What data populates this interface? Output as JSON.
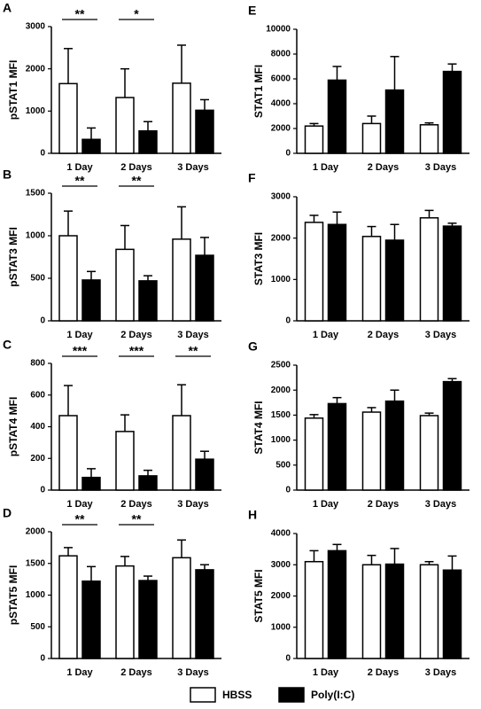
{
  "legend": [
    {
      "name": "HBSS",
      "color": "#ffffff"
    },
    {
      "name": "Poly(I:C)",
      "color": "#000000"
    }
  ],
  "chart_data": [
    {
      "type": "bar",
      "panel": "A",
      "ylabel": "pSTAT1 MFI",
      "categories": [
        "1 Day",
        "2 Days",
        "3 Days"
      ],
      "series": [
        {
          "values": [
            1650,
            1320,
            1660
          ],
          "errors": [
            830,
            680,
            900
          ]
        },
        {
          "values": [
            330,
            530,
            1020
          ],
          "errors": [
            270,
            220,
            250
          ]
        }
      ],
      "significance": [
        "**",
        "*",
        null
      ],
      "ylim": [
        0,
        3000
      ],
      "yticks": [
        0,
        1000,
        2000,
        3000
      ]
    },
    {
      "type": "bar",
      "panel": "B",
      "ylabel": "pSTAT3 MFI",
      "categories": [
        "1 Day",
        "2 Days",
        "3 Days"
      ],
      "series": [
        {
          "values": [
            1000,
            840,
            960
          ],
          "errors": [
            290,
            280,
            380
          ]
        },
        {
          "values": [
            480,
            470,
            770
          ],
          "errors": [
            100,
            60,
            210
          ]
        }
      ],
      "significance": [
        "**",
        "**",
        null
      ],
      "ylim": [
        0,
        1500
      ],
      "yticks": [
        0,
        500,
        1000,
        1500
      ]
    },
    {
      "type": "bar",
      "panel": "C",
      "ylabel": "pSTAT4 MFI",
      "categories": [
        "1 Day",
        "2 Days",
        "3 Days"
      ],
      "series": [
        {
          "values": [
            470,
            370,
            470
          ],
          "errors": [
            190,
            105,
            195
          ]
        },
        {
          "values": [
            80,
            90,
            195
          ],
          "errors": [
            55,
            35,
            50
          ]
        }
      ],
      "significance": [
        "***",
        "***",
        "**"
      ],
      "ylim": [
        0,
        800
      ],
      "yticks": [
        0,
        200,
        400,
        600,
        800
      ]
    },
    {
      "type": "bar",
      "panel": "D",
      "ylabel": "pSTAT5 MFI",
      "categories": [
        "1 Day",
        "2 Days",
        "3 Days"
      ],
      "series": [
        {
          "values": [
            1620,
            1460,
            1590
          ],
          "errors": [
            130,
            150,
            280
          ]
        },
        {
          "values": [
            1220,
            1230,
            1400
          ],
          "errors": [
            230,
            70,
            80
          ]
        }
      ],
      "significance": [
        "**",
        "**",
        null
      ],
      "ylim": [
        0,
        2000
      ],
      "yticks": [
        0,
        500,
        1000,
        1500,
        2000
      ]
    },
    {
      "type": "bar",
      "panel": "E",
      "ylabel": "STAT1 MFI",
      "categories": [
        "1 Day",
        "2 Days",
        "3 Days"
      ],
      "series": [
        {
          "values": [
            2200,
            2400,
            2300
          ],
          "errors": [
            200,
            600,
            150
          ]
        },
        {
          "values": [
            5900,
            5100,
            6600
          ],
          "errors": [
            1100,
            2700,
            600
          ]
        }
      ],
      "ylim": [
        0,
        10000
      ],
      "yticks": [
        0,
        2000,
        4000,
        6000,
        8000,
        10000
      ]
    },
    {
      "type": "bar",
      "panel": "F",
      "ylabel": "STAT3 MFI",
      "categories": [
        "1 Day",
        "2 Days",
        "3 Days"
      ],
      "series": [
        {
          "values": [
            2380,
            2040,
            2490
          ],
          "errors": [
            170,
            240,
            180
          ]
        },
        {
          "values": [
            2330,
            1950,
            2290
          ],
          "errors": [
            300,
            380,
            70
          ]
        }
      ],
      "ylim": [
        0,
        3000
      ],
      "yticks": [
        0,
        1000,
        2000,
        3000
      ]
    },
    {
      "type": "bar",
      "panel": "G",
      "ylabel": "STAT4 MFI",
      "categories": [
        "1 Day",
        "2 Days",
        "3 Days"
      ],
      "series": [
        {
          "values": [
            1440,
            1560,
            1490
          ],
          "errors": [
            70,
            90,
            50
          ]
        },
        {
          "values": [
            1730,
            1780,
            2170
          ],
          "errors": [
            120,
            220,
            60
          ]
        }
      ],
      "ylim": [
        0,
        2500
      ],
      "yticks": [
        0,
        500,
        1000,
        1500,
        2000,
        2500
      ]
    },
    {
      "type": "bar",
      "panel": "H",
      "ylabel": "STAT5 MFI",
      "categories": [
        "1 Day",
        "2 Days",
        "3 Days"
      ],
      "series": [
        {
          "values": [
            3100,
            3000,
            3000
          ],
          "errors": [
            350,
            300,
            100
          ]
        },
        {
          "values": [
            3450,
            3020,
            2830
          ],
          "errors": [
            200,
            500,
            450
          ]
        }
      ],
      "ylim": [
        0,
        4000
      ],
      "yticks": [
        0,
        1000,
        2000,
        3000,
        4000
      ]
    }
  ]
}
